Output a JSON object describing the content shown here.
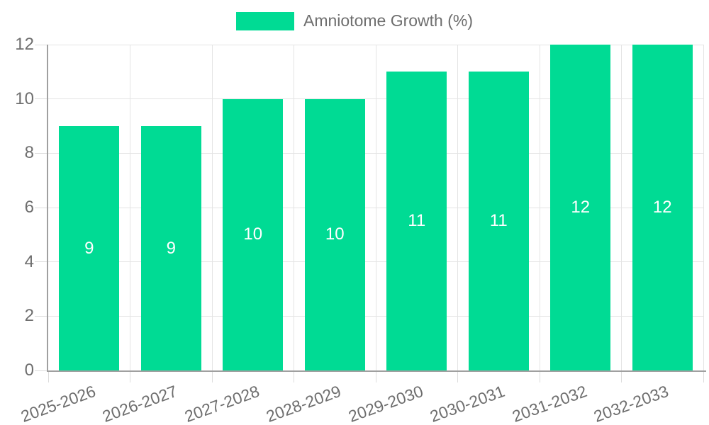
{
  "chart_data": {
    "type": "bar",
    "legend": {
      "label": "Amniotome Growth (%)",
      "position": "top"
    },
    "categories": [
      "2025-2026",
      "2026-2027",
      "2027-2028",
      "2028-2029",
      "2029-2030",
      "2030-2031",
      "2031-2032",
      "2032-2033"
    ],
    "series": [
      {
        "name": "Amniotome Growth (%)",
        "values": [
          9,
          9,
          10,
          10,
          11,
          11,
          12,
          12
        ]
      }
    ],
    "data_labels": [
      "9",
      "9",
      "10",
      "10",
      "11",
      "11",
      "12",
      "12"
    ],
    "xlabel": "",
    "ylabel": "",
    "ylim": [
      0,
      12
    ],
    "yticks": [
      0,
      2,
      4,
      6,
      8,
      10,
      12
    ],
    "grid": true,
    "colors": {
      "bar": "#00db94",
      "bar_label_text": "#ffffff",
      "axis_text": "#6e6e6e",
      "legend_text": "#6e6e6e",
      "gridline": "#e4e4e4",
      "tick_mark": "#dcdcdc",
      "axis_line": "#a0a0a0",
      "background": "#ffffff"
    }
  }
}
